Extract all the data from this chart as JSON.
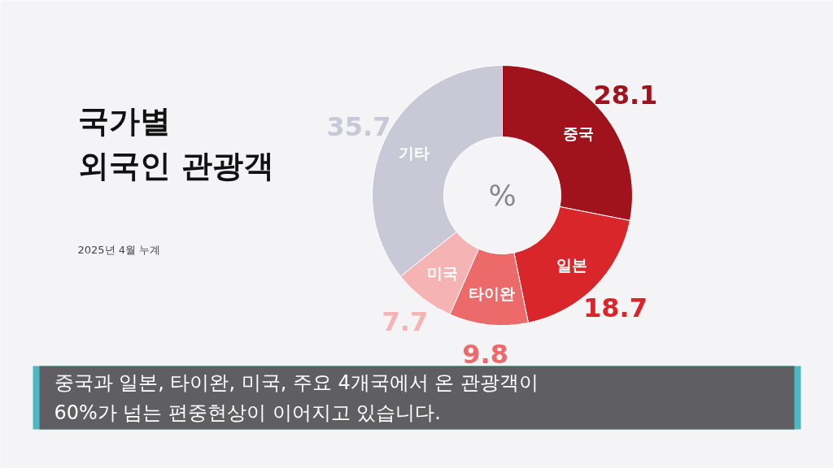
{
  "chart_data": {
    "type": "donut",
    "title": "국가별\n외국인 관광객",
    "categories": [
      "중국",
      "일본",
      "타이완",
      "미국",
      "기타"
    ],
    "values": [
      28.1,
      18.7,
      9.8,
      7.7,
      35.7
    ],
    "colors": [
      "#a0121c",
      "#d9262a",
      "#ec6a6a",
      "#f5b3b3",
      "#c8c8d6"
    ],
    "data_labels": true,
    "legend": false,
    "annotations": [
      "%",
      "중국과 일본, 타이완, 미국, 주요 4개국에서 온 관광객이\n60%가 넘는 편중현상이 이어지고 있습니다.",
      "2025년 4월 누계"
    ]
  }
}
